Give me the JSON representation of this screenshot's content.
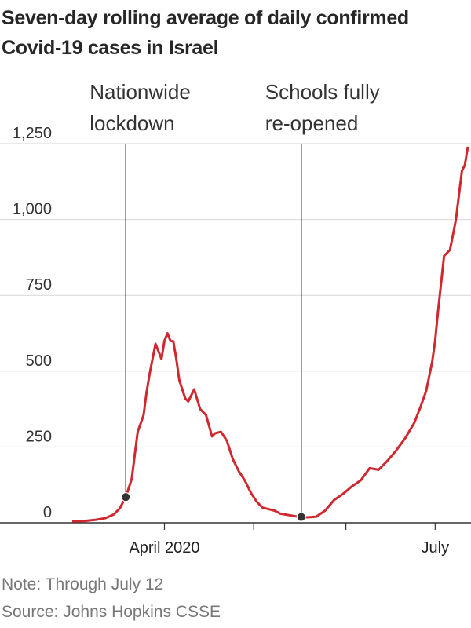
{
  "chart_data": {
    "type": "line",
    "title": "Seven-day rolling average of daily confirmed Covid-19 cases in Israel",
    "title_lines": [
      "Seven-day rolling average of daily confirmed",
      "Covid-19 cases in Israel"
    ],
    "note": "Note: Through July 12",
    "source": "Source: Johns Hopkins CSSE",
    "ylim": [
      0,
      1250
    ],
    "yticks": [
      0,
      250,
      500,
      750,
      1000,
      1250
    ],
    "ytick_labels": [
      "0",
      "250",
      "500",
      "750",
      "1,000",
      "1,250"
    ],
    "xlim": [
      "2020-03-01",
      "2020-07-12"
    ],
    "xticks": [
      "2020-04-01",
      "2020-05-01",
      "2020-06-01",
      "2020-07-01"
    ],
    "xtick_labels": [
      "April 2020",
      "",
      "",
      "July"
    ],
    "grid": true,
    "line_color": "#d0282e",
    "series": [
      {
        "x": [
          "2020-03-01",
          "2020-03-05",
          "2020-03-09",
          "2020-03-12",
          "2020-03-15",
          "2020-03-17",
          "2020-03-19",
          "2020-03-21",
          "2020-03-23",
          "2020-03-25",
          "2020-03-26",
          "2020-03-27",
          "2020-03-29",
          "2020-03-31",
          "2020-04-01",
          "2020-04-02",
          "2020-04-03",
          "2020-04-04",
          "2020-04-05",
          "2020-04-06",
          "2020-04-07",
          "2020-04-08",
          "2020-04-09",
          "2020-04-11",
          "2020-04-13",
          "2020-04-15",
          "2020-04-16",
          "2020-04-17",
          "2020-04-18",
          "2020-04-20",
          "2020-04-22",
          "2020-04-24",
          "2020-04-26",
          "2020-04-28",
          "2020-04-30",
          "2020-05-02",
          "2020-05-04",
          "2020-05-06",
          "2020-05-08",
          "2020-05-10",
          "2020-05-13",
          "2020-05-16",
          "2020-05-19",
          "2020-05-22",
          "2020-05-25",
          "2020-05-28",
          "2020-05-31",
          "2020-06-03",
          "2020-06-06",
          "2020-06-09",
          "2020-06-12",
          "2020-06-15",
          "2020-06-18",
          "2020-06-21",
          "2020-06-24",
          "2020-06-26",
          "2020-06-28",
          "2020-06-30",
          "2020-07-01",
          "2020-07-02",
          "2020-07-04",
          "2020-07-06",
          "2020-07-08",
          "2020-07-10",
          "2020-07-11",
          "2020-07-12"
        ],
        "y": [
          5,
          6,
          10,
          15,
          28,
          48,
          85,
          145,
          300,
          355,
          430,
          490,
          590,
          540,
          600,
          625,
          600,
          598,
          540,
          470,
          440,
          410,
          400,
          440,
          375,
          355,
          320,
          285,
          295,
          300,
          270,
          210,
          170,
          140,
          100,
          70,
          50,
          45,
          40,
          30,
          25,
          20,
          18,
          20,
          40,
          75,
          95,
          120,
          140,
          180,
          175,
          205,
          240,
          280,
          330,
          380,
          435,
          530,
          600,
          700,
          880,
          900,
          1000,
          1160,
          1180,
          1240
        ]
      }
    ],
    "annotations": [
      {
        "label_lines": [
          "Nationwide",
          "lockdown"
        ],
        "x": "2020-03-19"
      },
      {
        "label_lines": [
          "Schools fully",
          "re-opened"
        ],
        "x": "2020-05-17"
      }
    ]
  }
}
